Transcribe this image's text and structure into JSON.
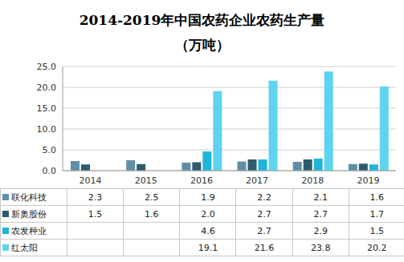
{
  "chart_data": {
    "type": "bar",
    "title": "2014-2019年中国农药企业农药生产量",
    "subtitle": "（万吨）",
    "categories": [
      "2014",
      "2015",
      "2016",
      "2017",
      "2018",
      "2019"
    ],
    "series": [
      {
        "name": "联化科技",
        "color": "#5f8fa8",
        "values": [
          2.3,
          2.5,
          1.9,
          2.2,
          2.1,
          1.6
        ],
        "value_labels": [
          "2.3",
          "2.5",
          "1.9",
          "2.2",
          "2.1",
          "1.6"
        ]
      },
      {
        "name": "新奥股份",
        "color": "#2f5b6e",
        "values": [
          1.5,
          1.6,
          2.0,
          2.7,
          2.7,
          1.7
        ],
        "value_labels": [
          "1.5",
          "1.6",
          "2.0",
          "2.7",
          "2.7",
          "1.7"
        ]
      },
      {
        "name": "农发种业",
        "color": "#1fb4dc",
        "values": [
          null,
          null,
          4.6,
          2.7,
          2.9,
          1.5
        ],
        "value_labels": [
          null,
          null,
          "4.6",
          "2.7",
          "2.9",
          "1.5"
        ]
      },
      {
        "name": "红太阳",
        "color": "#5fd3f0",
        "values": [
          null,
          null,
          19.1,
          21.6,
          23.8,
          20.2
        ],
        "value_labels": [
          null,
          null,
          "19.1",
          "21.6",
          "23.8",
          "20.2"
        ]
      }
    ],
    "ylim": [
      0,
      25
    ],
    "yticks": [
      {
        "value": 0,
        "label": "0.0"
      },
      {
        "value": 5,
        "label": "5.0"
      },
      {
        "value": 10,
        "label": "10.0"
      },
      {
        "value": 15,
        "label": "15.0"
      },
      {
        "value": 20,
        "label": "20.0"
      },
      {
        "value": 25,
        "label": "25.0"
      }
    ],
    "grid": true
  }
}
